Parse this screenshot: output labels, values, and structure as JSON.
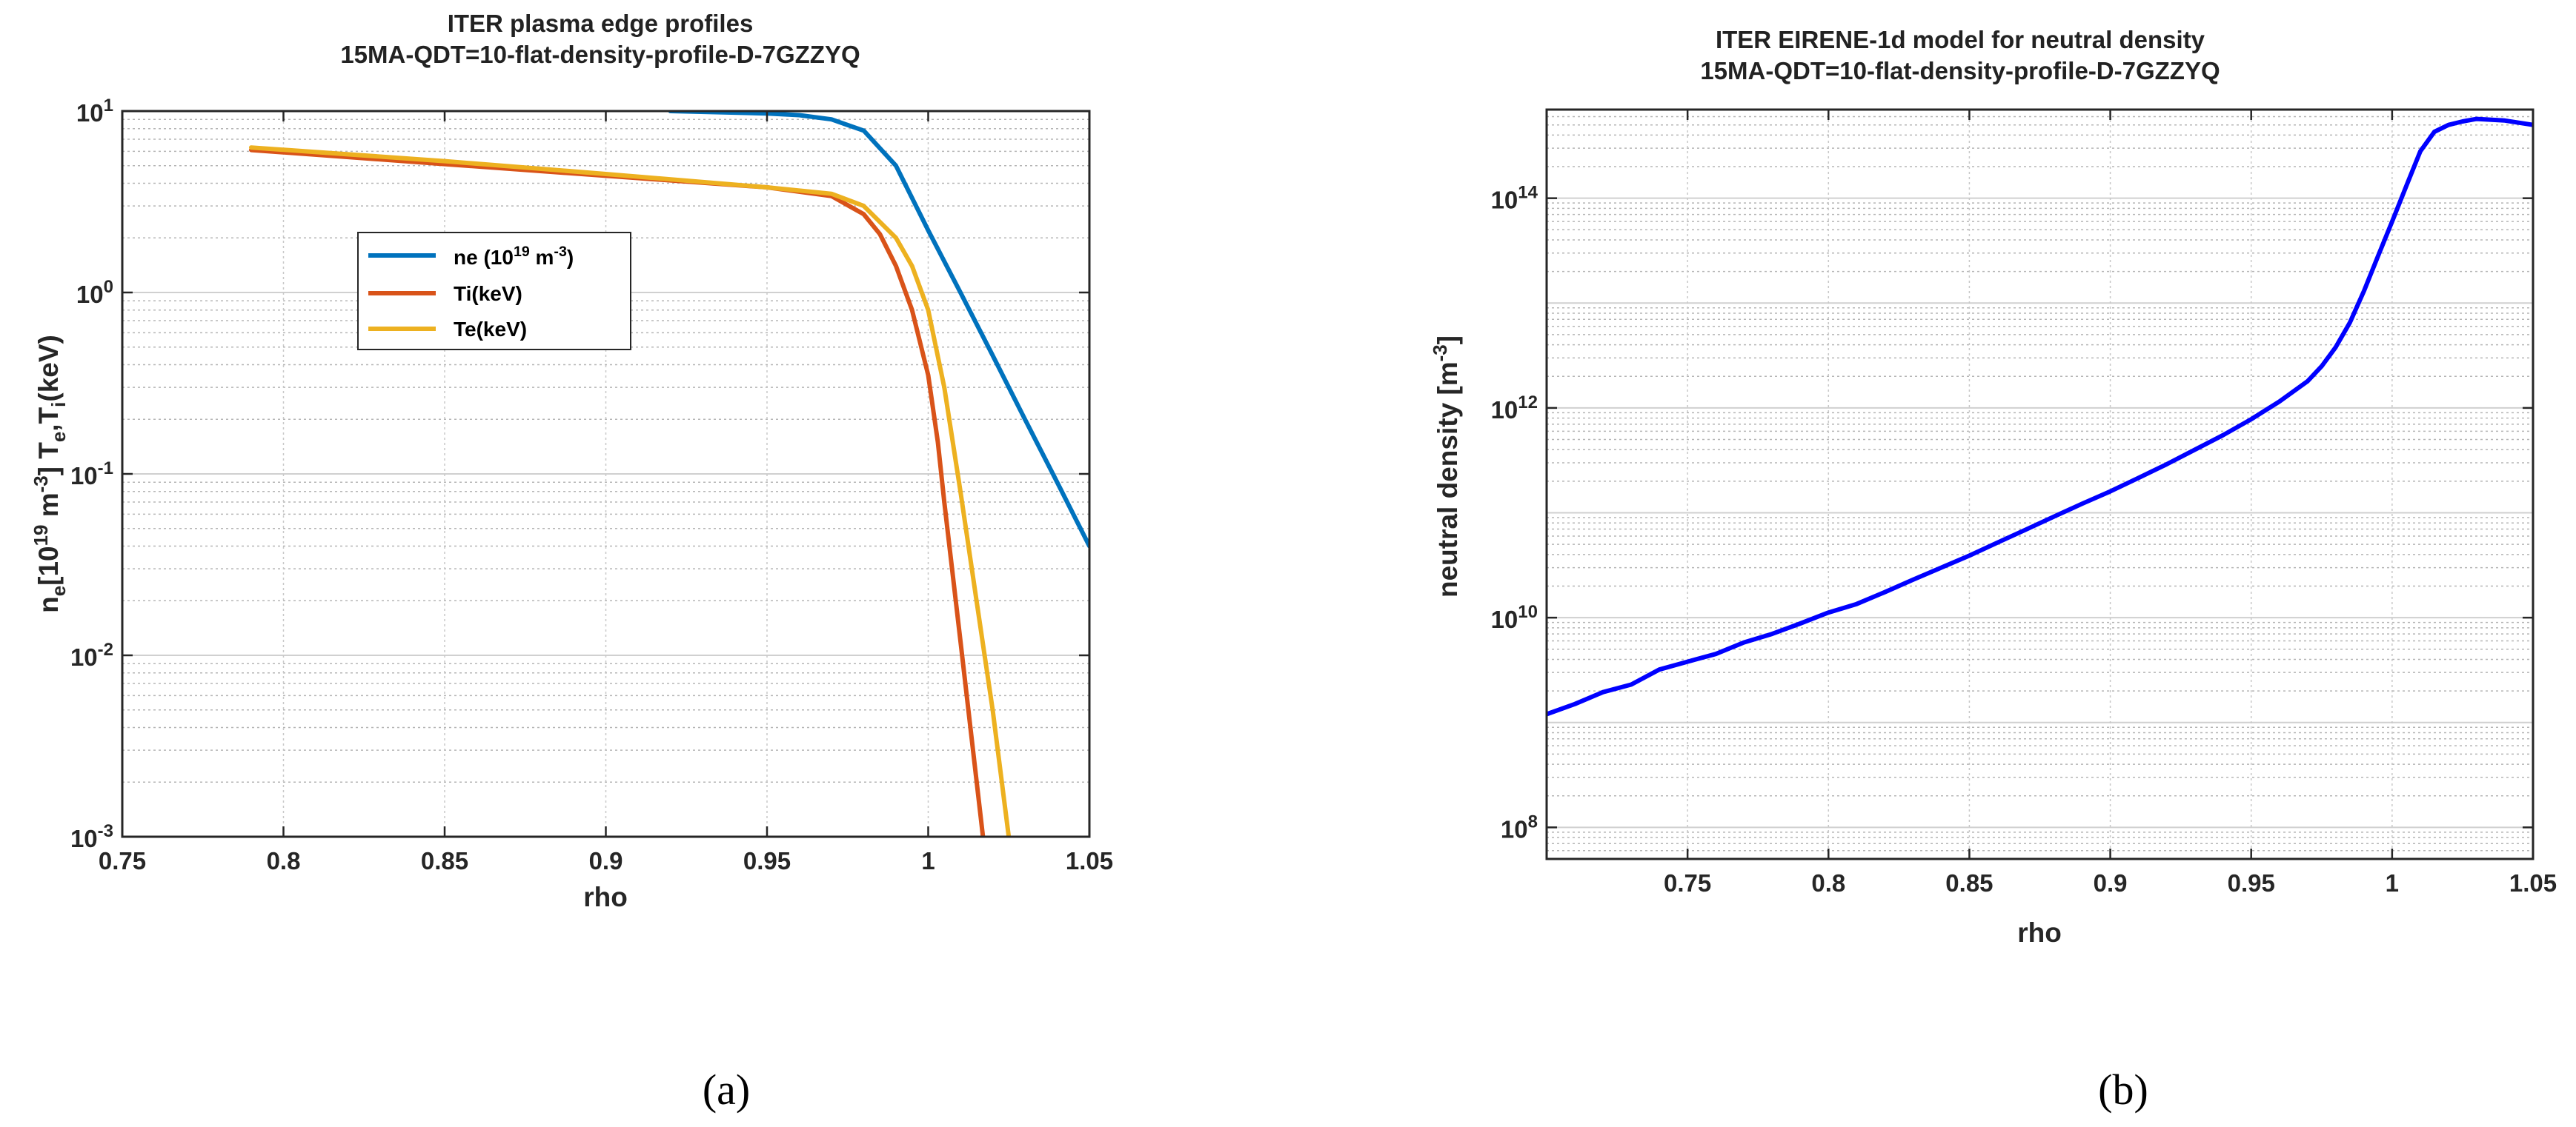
{
  "chart_data": [
    {
      "id": "a",
      "type": "line",
      "title": "ITER plasma edge profiles",
      "subtitle": "15MA-QDT=10-flat-density-profile-D-7GZZYQ",
      "xlabel": "rho",
      "ylabel": {
        "n": "n",
        "e_sub": "e",
        "lb": "[10",
        "exp19": "19",
        "m": " m",
        "expm3": "-3",
        "rb": "] T",
        "e2_sub": "e",
        "comma": ",T",
        "i_sub": "i",
        "kev": "(keV)"
      },
      "yscale": "log",
      "xlim": [
        0.75,
        1.05
      ],
      "ylim": [
        0.001,
        10
      ],
      "xticks": [
        0.75,
        0.8,
        0.85,
        0.9,
        0.95,
        1,
        1.05
      ],
      "xtick_labels": [
        "0.75",
        "0.8",
        "0.85",
        "0.9",
        "0.95",
        "1",
        "1.05"
      ],
      "ytick_labels": [
        {
          "base": "10",
          "exp": "1",
          "value": 10
        },
        {
          "base": "10",
          "exp": "0",
          "value": 1
        },
        {
          "base": "10",
          "exp": "-1",
          "value": 0.1
        },
        {
          "base": "10",
          "exp": "-2",
          "value": 0.01
        },
        {
          "base": "10",
          "exp": "-3",
          "value": 0.001
        }
      ],
      "grid": true,
      "legend_position": "upper-left inside",
      "series": [
        {
          "name": "ne (10^19 m^-3)",
          "label_base": "ne (10",
          "label_exp": "19",
          "label_mid": " m",
          "label_exp2": "-3",
          "label_end": ")",
          "color": "#0072BD",
          "x": [
            0.92,
            0.95,
            0.96,
            0.97,
            0.98,
            0.99,
            1.0,
            1.01,
            1.02,
            1.03,
            1.04,
            1.05
          ],
          "y": [
            10.0,
            9.7,
            9.5,
            9.0,
            7.8,
            5.0,
            2.2,
            1.0,
            0.45,
            0.2,
            0.09,
            0.04
          ]
        },
        {
          "name": "Ti(keV)",
          "label_base": "Ti(keV)",
          "color": "#D95319",
          "x": [
            0.79,
            0.85,
            0.9,
            0.95,
            0.97,
            0.98,
            0.985,
            0.99,
            0.995,
            1.0,
            1.003,
            1.005,
            1.01,
            1.017
          ],
          "y": [
            6.1,
            5.1,
            4.4,
            3.8,
            3.4,
            2.7,
            2.1,
            1.4,
            0.8,
            0.35,
            0.15,
            0.07,
            0.012,
            0.001
          ]
        },
        {
          "name": "Te(keV)",
          "label_base": "Te(keV)",
          "color": "#EDB120",
          "x": [
            0.79,
            0.85,
            0.9,
            0.95,
            0.97,
            0.98,
            0.99,
            0.995,
            1.0,
            1.005,
            1.01,
            1.015,
            1.02,
            1.025
          ],
          "y": [
            6.3,
            5.3,
            4.5,
            3.8,
            3.5,
            3.0,
            2.0,
            1.4,
            0.8,
            0.3,
            0.08,
            0.02,
            0.005,
            0.001
          ]
        }
      ],
      "caption": "(a)"
    },
    {
      "id": "b",
      "type": "line",
      "title": "ITER EIRENE-1d model for neutral density",
      "subtitle": "15MA-QDT=10-flat-density-profile-D-7GZZYQ",
      "xlabel": "rho",
      "ylabel": {
        "text": "neutral density [m",
        "exp": "-3",
        "end": "]"
      },
      "yscale": "log",
      "xlim": [
        0.7,
        1.05
      ],
      "ylim": [
        50000000.0,
        700000000000000.0
      ],
      "xticks": [
        0.75,
        0.8,
        0.85,
        0.9,
        0.95,
        1,
        1.05
      ],
      "xtick_labels": [
        "0.75",
        "0.8",
        "0.85",
        "0.9",
        "0.95",
        "1",
        "1.05"
      ],
      "ytick_labels": [
        {
          "base": "10",
          "exp": "14",
          "value": 100000000000000.0
        },
        {
          "base": "10",
          "exp": "12",
          "value": 1000000000000.0
        },
        {
          "base": "10",
          "exp": "10",
          "value": 10000000000.0
        },
        {
          "base": "10",
          "exp": "8",
          "value": 100000000.0
        }
      ],
      "grid": true,
      "series": [
        {
          "name": "neutral density",
          "color": "#0000FF",
          "x": [
            0.7,
            0.71,
            0.72,
            0.73,
            0.74,
            0.75,
            0.76,
            0.77,
            0.78,
            0.79,
            0.8,
            0.81,
            0.82,
            0.83,
            0.84,
            0.85,
            0.86,
            0.87,
            0.88,
            0.89,
            0.9,
            0.91,
            0.92,
            0.93,
            0.94,
            0.95,
            0.96,
            0.97,
            0.975,
            0.98,
            0.985,
            0.99,
            0.995,
            1.0,
            1.005,
            1.01,
            1.015,
            1.02,
            1.025,
            1.03,
            1.04,
            1.05
          ],
          "y": [
            1200000000.0,
            1500000000.0,
            1950000000.0,
            2300000000.0,
            3200000000.0,
            3800000000.0,
            4500000000.0,
            5800000000.0,
            7000000000.0,
            8800000000.0,
            11200000000.0,
            13500000000.0,
            17500000000.0,
            23000000000.0,
            30000000000.0,
            39000000000.0,
            52000000000.0,
            69000000000.0,
            92000000000.0,
            122000000000.0,
            160000000000.0,
            215000000000.0,
            290000000000.0,
            400000000000.0,
            550000000000.0,
            780000000000.0,
            1150000000000.0,
            1800000000000.0,
            2500000000000.0,
            3800000000000.0,
            6500000000000.0,
            13000000000000.0,
            28000000000000.0,
            60000000000000.0,
            130000000000000.0,
            280000000000000.0,
            430000000000000.0,
            500000000000000.0,
            540000000000000.0,
            570000000000000.0,
            550000000000000.0,
            500000000000000.0
          ]
        }
      ],
      "caption": "(b)"
    }
  ]
}
